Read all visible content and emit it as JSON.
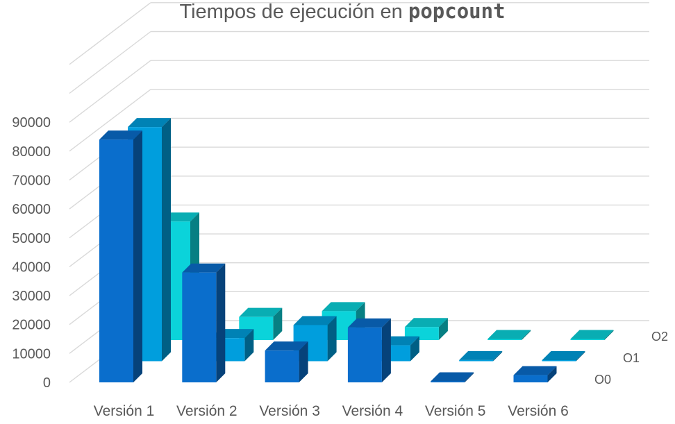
{
  "chart_data": {
    "type": "bar",
    "subtype": "3d-column",
    "title_prefix": "Tiempos de ejecución en ",
    "title_emphasis": "popcount",
    "categories": [
      "Versión 1",
      "Versión 2",
      "Versión 3",
      "Versión 4",
      "Versión 5",
      "Versión 6"
    ],
    "series": [
      {
        "name": "O0",
        "values": [
          84000,
          38000,
          11000,
          19000,
          300,
          2500
        ],
        "color": "#0A6ECC"
      },
      {
        "name": "O1",
        "values": [
          81000,
          8000,
          12500,
          5500,
          400,
          300
        ],
        "color": "#009EDD"
      },
      {
        "name": "O2",
        "values": [
          41000,
          8000,
          10000,
          4500,
          200,
          200
        ],
        "color": "#0BD3DA"
      }
    ],
    "y_ticks": [
      "0",
      "10000",
      "20000",
      "30000",
      "40000",
      "50000",
      "60000",
      "70000",
      "80000",
      "90000"
    ],
    "ylim": [
      0,
      110000
    ],
    "grid": true,
    "gridline_color": "#D9D9D9",
    "label_color": "#595959"
  }
}
